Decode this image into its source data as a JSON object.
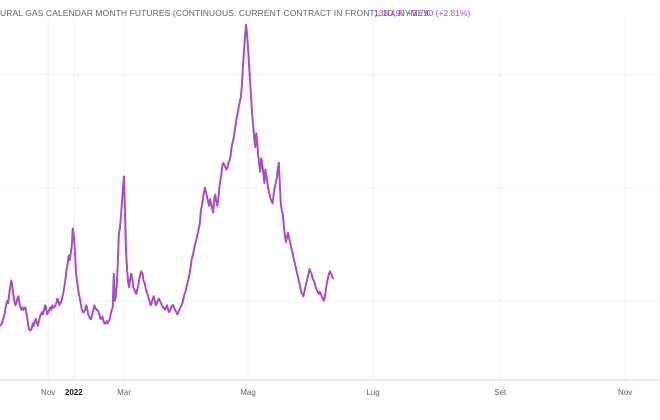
{
  "legend": {
    "title": "URAL GAS CALENDAR MONTH FUTURES (CONTINUOUS: CURRENT CONTRACT IN FRONT), 1D, NYMEX",
    "last": "138.490",
    "change": "+3.790 (+2.81%)"
  },
  "colors": {
    "series": "#a64fc0",
    "text": "#5d606b",
    "grid": "#eef0f3",
    "axis": "#d1d4dc"
  },
  "chart_data": {
    "type": "line",
    "grid": true,
    "x_ticks": [
      {
        "label": "Nov",
        "x": 23.5,
        "bold": false
      },
      {
        "label": "2022",
        "x": 36,
        "bold": true
      },
      {
        "label": "Mar",
        "x": 60.5,
        "bold": false
      },
      {
        "label": "Mag",
        "x": 121,
        "bold": false
      },
      {
        "label": "Lug",
        "x": 182,
        "bold": false
      },
      {
        "label": "Set",
        "x": 244,
        "bold": false
      },
      {
        "label": "Nov",
        "x": 305,
        "bold": false
      }
    ],
    "xlim": [
      0,
      322
    ],
    "ylim": [
      65,
      225
    ],
    "series": [
      {
        "points": [
          [
            0,
            89
          ],
          [
            1,
            90
          ],
          [
            1.5,
            92
          ],
          [
            2,
            93
          ],
          [
            3,
            98
          ],
          [
            3.5,
            100
          ],
          [
            4,
            99
          ],
          [
            4.5,
            103
          ],
          [
            5,
            106
          ],
          [
            5.5,
            109
          ],
          [
            6,
            107
          ],
          [
            6.5,
            103
          ],
          [
            7,
            100
          ],
          [
            7.5,
            98
          ],
          [
            8,
            99
          ],
          [
            8.5,
            101
          ],
          [
            9,
            102
          ],
          [
            9.5,
            99
          ],
          [
            10,
            97
          ],
          [
            10.5,
            96
          ],
          [
            11,
            97
          ],
          [
            11.5,
            96
          ],
          [
            12,
            97
          ],
          [
            12.5,
            97
          ],
          [
            13,
            94
          ],
          [
            13.5,
            91
          ],
          [
            14,
            88
          ],
          [
            14.5,
            87
          ],
          [
            15,
            87
          ],
          [
            15.5,
            88
          ],
          [
            16,
            90
          ],
          [
            16.5,
            89
          ],
          [
            17,
            91
          ],
          [
            17.5,
            92
          ],
          [
            18,
            90
          ],
          [
            18.5,
            89
          ],
          [
            19,
            91
          ],
          [
            19.5,
            93
          ],
          [
            20,
            94
          ],
          [
            20.5,
            95
          ],
          [
            21,
            94
          ],
          [
            21.5,
            96
          ],
          [
            22,
            98
          ],
          [
            22.5,
            97
          ],
          [
            23,
            94
          ],
          [
            23.5,
            95
          ],
          [
            24,
            96
          ],
          [
            24.5,
            97
          ],
          [
            25,
            96
          ],
          [
            25.5,
            98
          ],
          [
            26,
            97
          ],
          [
            26.5,
            97
          ],
          [
            27,
            98
          ],
          [
            27.5,
            99
          ],
          [
            28,
            101
          ],
          [
            28.5,
            100
          ],
          [
            29,
            98
          ],
          [
            29.5,
            99
          ],
          [
            30,
            100
          ],
          [
            30.5,
            102
          ],
          [
            31,
            104
          ],
          [
            31.5,
            107
          ],
          [
            32,
            110
          ],
          [
            32.5,
            114
          ],
          [
            33,
            116
          ],
          [
            33.5,
            120
          ],
          [
            34,
            118
          ],
          [
            34.5,
            121
          ],
          [
            35,
            124
          ],
          [
            35.5,
            132
          ],
          [
            36,
            129
          ],
          [
            36.5,
            123
          ],
          [
            37,
            114
          ],
          [
            37.5,
            109
          ],
          [
            38,
            106
          ],
          [
            38.5,
            103
          ],
          [
            39,
            101
          ],
          [
            39.5,
            98
          ],
          [
            40,
            96
          ],
          [
            40.5,
            95
          ],
          [
            41,
            95
          ],
          [
            41.5,
            96
          ],
          [
            42,
            98
          ],
          [
            42.5,
            97
          ],
          [
            43,
            94
          ],
          [
            43.5,
            93
          ],
          [
            44,
            92
          ],
          [
            44.5,
            92
          ],
          [
            45,
            94
          ],
          [
            45.5,
            96
          ],
          [
            46,
            98
          ],
          [
            46.5,
            97
          ],
          [
            47,
            96
          ],
          [
            47.5,
            96
          ],
          [
            48,
            95
          ],
          [
            48.5,
            94
          ],
          [
            49,
            92
          ],
          [
            49.5,
            92
          ],
          [
            50,
            93
          ],
          [
            50.5,
            91
          ],
          [
            51,
            90
          ],
          [
            51.5,
            90
          ],
          [
            52,
            91
          ],
          [
            52.5,
            90
          ],
          [
            53,
            91
          ],
          [
            53.5,
            92
          ],
          [
            54,
            94
          ],
          [
            54.5,
            96
          ],
          [
            55,
            97
          ],
          [
            55.5,
            112
          ],
          [
            56,
            100
          ],
          [
            56.5,
            102
          ],
          [
            57,
            107
          ],
          [
            57.5,
            118
          ],
          [
            58,
            130
          ],
          [
            58.5,
            132
          ],
          [
            59,
            137
          ],
          [
            59.5,
            144
          ],
          [
            60,
            150
          ],
          [
            60.5,
            155
          ],
          [
            61,
            140
          ],
          [
            61.5,
            121
          ],
          [
            62,
            114
          ],
          [
            62.5,
            108
          ],
          [
            63,
            106
          ],
          [
            63.5,
            110
          ],
          [
            64,
            112
          ],
          [
            64.5,
            110
          ],
          [
            65,
            106
          ],
          [
            65.5,
            105
          ],
          [
            66,
            104
          ],
          [
            66.5,
            103
          ],
          [
            67,
            105
          ],
          [
            67.5,
            107
          ],
          [
            68,
            110
          ],
          [
            68.5,
            112
          ],
          [
            69,
            113
          ],
          [
            69.5,
            112
          ],
          [
            70,
            109
          ],
          [
            70.5,
            108
          ],
          [
            71,
            106
          ],
          [
            71.5,
            104
          ],
          [
            72,
            103
          ],
          [
            72.5,
            101
          ],
          [
            73,
            100
          ],
          [
            73.5,
            98
          ],
          [
            74,
            99
          ],
          [
            74.5,
            101
          ],
          [
            75,
            102
          ],
          [
            75.5,
            100
          ],
          [
            76,
            98
          ],
          [
            76.5,
            99
          ],
          [
            77,
            100
          ],
          [
            77.5,
            101
          ],
          [
            78,
            100
          ],
          [
            78.5,
            99
          ],
          [
            79,
            98
          ],
          [
            79.5,
            97
          ],
          [
            80,
            97
          ],
          [
            80.5,
            96
          ],
          [
            81,
            97
          ],
          [
            81.5,
            98
          ],
          [
            82,
            96
          ],
          [
            82.5,
            95
          ],
          [
            83,
            96
          ],
          [
            83.5,
            97
          ],
          [
            84,
            98
          ],
          [
            84.5,
            98
          ],
          [
            85,
            97
          ],
          [
            85.5,
            96
          ],
          [
            86,
            95
          ],
          [
            86.5,
            94
          ],
          [
            87,
            95
          ],
          [
            87.5,
            96
          ],
          [
            88,
            97
          ],
          [
            88.5,
            98
          ],
          [
            89,
            99
          ],
          [
            89.5,
            101
          ],
          [
            90,
            103
          ],
          [
            90.5,
            104
          ],
          [
            91,
            106
          ],
          [
            91.5,
            108
          ],
          [
            92,
            110
          ],
          [
            92.5,
            112
          ],
          [
            93,
            115
          ],
          [
            93.5,
            118
          ],
          [
            94,
            120
          ],
          [
            94.5,
            122
          ],
          [
            95,
            124
          ],
          [
            95.5,
            126
          ],
          [
            96,
            128
          ],
          [
            96.5,
            130
          ],
          [
            97,
            132
          ],
          [
            97.5,
            134
          ],
          [
            98,
            140
          ],
          [
            98.5,
            142
          ],
          [
            99,
            145
          ],
          [
            99.5,
            148
          ],
          [
            100,
            150
          ],
          [
            100.5,
            148
          ],
          [
            101,
            146
          ],
          [
            101.5,
            144
          ],
          [
            102,
            142
          ],
          [
            102.5,
            145
          ],
          [
            103,
            143
          ],
          [
            103.5,
            141
          ],
          [
            104,
            139
          ],
          [
            104.5,
            145
          ],
          [
            105,
            147
          ],
          [
            105.5,
            144
          ],
          [
            106,
            142
          ],
          [
            106.5,
            145
          ],
          [
            107,
            150
          ],
          [
            107.5,
            153
          ],
          [
            108,
            156
          ],
          [
            108.5,
            160
          ],
          [
            109,
            161
          ],
          [
            109.5,
            160
          ],
          [
            110,
            159
          ],
          [
            110.5,
            158
          ],
          [
            111,
            159
          ],
          [
            111.5,
            161
          ],
          [
            112,
            162
          ],
          [
            112.5,
            164
          ],
          [
            113,
            168
          ],
          [
            113.5,
            170
          ],
          [
            114,
            172
          ],
          [
            114.5,
            175
          ],
          [
            115,
            178
          ],
          [
            115.5,
            181
          ],
          [
            116,
            183
          ],
          [
            116.5,
            186
          ],
          [
            117,
            188
          ],
          [
            117.5,
            190
          ],
          [
            118,
            195
          ],
          [
            118.5,
            203
          ],
          [
            119,
            210
          ],
          [
            119.5,
            216
          ],
          [
            120,
            222
          ],
          [
            120.5,
            218
          ],
          [
            121,
            212
          ],
          [
            121.5,
            205
          ],
          [
            122,
            197
          ],
          [
            122.5,
            190
          ],
          [
            123,
            183
          ],
          [
            123.5,
            178
          ],
          [
            124,
            172
          ],
          [
            124.5,
            168
          ],
          [
            125,
            174
          ],
          [
            125.5,
            170
          ],
          [
            126,
            164
          ],
          [
            126.5,
            160
          ],
          [
            127,
            157
          ],
          [
            127.5,
            163
          ],
          [
            128,
            160
          ],
          [
            128.5,
            156
          ],
          [
            129,
            152
          ],
          [
            129.5,
            158
          ],
          [
            130,
            155
          ],
          [
            130.5,
            152
          ],
          [
            131,
            149
          ],
          [
            131.5,
            147
          ],
          [
            132,
            145
          ],
          [
            132.5,
            144
          ],
          [
            133,
            143
          ],
          [
            133.5,
            147
          ],
          [
            134,
            150
          ],
          [
            134.5,
            152
          ],
          [
            135,
            154
          ],
          [
            135.5,
            158
          ],
          [
            136,
            161
          ],
          [
            136.5,
            152
          ],
          [
            137,
            143
          ],
          [
            137.5,
            140
          ],
          [
            138,
            138
          ],
          [
            138.5,
            133
          ],
          [
            139,
            129
          ],
          [
            139.5,
            126
          ],
          [
            140,
            128
          ],
          [
            140.5,
            130
          ],
          [
            141,
            128
          ],
          [
            141.5,
            126
          ],
          [
            142,
            124
          ],
          [
            142.5,
            122
          ],
          [
            143,
            120
          ],
          [
            143.5,
            118
          ],
          [
            144,
            116
          ],
          [
            144.5,
            114
          ],
          [
            145,
            112
          ],
          [
            145.5,
            110
          ],
          [
            146,
            108
          ],
          [
            146.5,
            106
          ],
          [
            147,
            104
          ],
          [
            147.5,
            103
          ],
          [
            148,
            102
          ],
          [
            148.5,
            104
          ],
          [
            149,
            106
          ],
          [
            149.5,
            108
          ],
          [
            150,
            110
          ],
          [
            150.5,
            112
          ],
          [
            151,
            114
          ],
          [
            151.5,
            113
          ],
          [
            152,
            112
          ],
          [
            152.5,
            110
          ],
          [
            153,
            109
          ],
          [
            153.5,
            108
          ],
          [
            154,
            106
          ],
          [
            154.5,
            105
          ],
          [
            155,
            104
          ],
          [
            155.5,
            103
          ],
          [
            156,
            104
          ],
          [
            156.5,
            103
          ],
          [
            157,
            102
          ],
          [
            157.5,
            101
          ],
          [
            158,
            100
          ],
          [
            158.5,
            102
          ],
          [
            159,
            105
          ],
          [
            159.5,
            108
          ],
          [
            160,
            110
          ],
          [
            160.5,
            112
          ],
          [
            161,
            113
          ],
          [
            161.5,
            112
          ],
          [
            162,
            111
          ],
          [
            162.5,
            110
          ]
        ]
      }
    ]
  }
}
